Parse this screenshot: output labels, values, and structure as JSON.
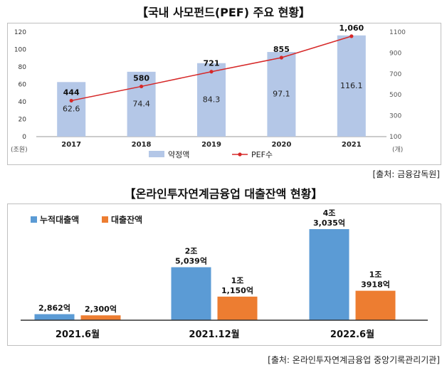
{
  "header1": {
    "title": "【국내 사모펀드(PEF) 주요 현황】"
  },
  "header2": {
    "title": "【온라인투자연계금융업 대출잔액 현황】"
  },
  "source1": "[출처: 금융감독원]",
  "source2": "[출처: 온라인투자연계금융업 중앙기록관리기관]",
  "chart_data": [
    {
      "type": "bar",
      "title": "【국내 사모펀드(PEF) 주요 현황】",
      "categories": [
        "2017",
        "2018",
        "2019",
        "2020",
        "2021"
      ],
      "series": [
        {
          "name": "약정액",
          "kind": "bar",
          "axis": "left",
          "color": "#b4c7e7",
          "values": [
            62.6,
            74.4,
            84.3,
            97.1,
            116.1
          ],
          "labels": [
            "62.6",
            "74.4",
            "84.3",
            "97.1",
            "116.1"
          ]
        },
        {
          "name": "PEF수",
          "kind": "line",
          "axis": "right",
          "color": "#d62828",
          "values": [
            444,
            580,
            721,
            855,
            1060
          ],
          "labels": [
            "444",
            "580",
            "721",
            "855",
            "1,060"
          ]
        }
      ],
      "left_axis": {
        "unit": "(조원)",
        "ylim": [
          0,
          120
        ],
        "ticks": [
          "0",
          "20",
          "40",
          "60",
          "80",
          "100",
          "120"
        ]
      },
      "right_axis": {
        "unit": "(개)",
        "ylim": [
          100,
          1100
        ],
        "ticks": [
          "100",
          "300",
          "500",
          "700",
          "900",
          "1100"
        ]
      },
      "legend": [
        "약정액",
        "PEF수"
      ],
      "legend_position": "bottom"
    },
    {
      "type": "bar",
      "title": "【온라인투자연계금융업 대출잔액 현황】",
      "categories": [
        "2021.6월",
        "2021.12월",
        "2022.6월"
      ],
      "series": [
        {
          "name": "누적대출액",
          "color": "#5b9bd5",
          "values": [
            2862,
            25039,
            43035
          ],
          "labels": [
            [
              "2,862억"
            ],
            [
              "2조",
              "5,039억"
            ],
            [
              "4조",
              "3,035억"
            ]
          ]
        },
        {
          "name": "대출잔액",
          "color": "#ed7d31",
          "values": [
            2300,
            11150,
            13918
          ],
          "labels": [
            [
              "2,300억"
            ],
            [
              "1조",
              "1,150억"
            ],
            [
              "1조",
              "3918억"
            ]
          ]
        }
      ],
      "unit": "억원",
      "legend": [
        "누적대출액",
        "대출잔액"
      ],
      "legend_position": "top-left"
    }
  ]
}
